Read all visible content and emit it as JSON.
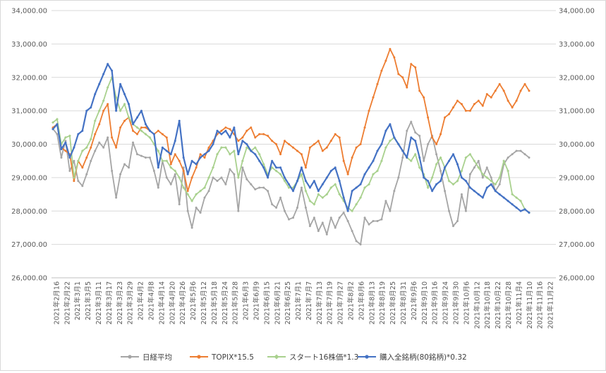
{
  "chart_data": {
    "type": "line",
    "y_axis": {
      "min": 26000,
      "max": 34000,
      "step": 1000,
      "tick_labels": [
        "26,000.00",
        "27,000.00",
        "28,000.00",
        "29,000.00",
        "30,000.00",
        "31,000.00",
        "32,000.00",
        "33,000.00",
        "34,000.00"
      ],
      "right_axis_mirror": true
    },
    "grid": true,
    "legend_position": "bottom",
    "x_tick_labels": [
      "2021年2月16",
      "2021年2月22",
      "2021年3月1",
      "2021年3月5",
      "2021年3月11",
      "2021年3月17",
      "2021年3月23",
      "2021年3月29",
      "2021年4月2",
      "2021年4月8",
      "2021年4月14",
      "2021年4月20",
      "2021年4月26",
      "2021年5月6",
      "2021年5月12",
      "2021年5月18",
      "2021年5月24",
      "2021年5月28",
      "2021年6月3",
      "2021年6月9",
      "2021年6月15",
      "2021年6月21",
      "2021年6月25",
      "2021年7月1",
      "2021年7月7",
      "2021年7月13",
      "2021年7月19",
      "2021年7月27",
      "2021年8月2",
      "2021年8月6",
      "2021年8月13",
      "2021年8月19",
      "2021年8月25",
      "2021年8月31",
      "2021年9月6",
      "2021年9月10",
      "2021年9月16",
      "2021年9月24",
      "2021年9月30",
      "2021年10月6",
      "2021年10月12",
      "2021年10月18",
      "2021年10月22",
      "2021年10月28",
      "2021年11月4",
      "2021年11月10",
      "2021年11月16",
      "2021年11月22"
    ],
    "series": [
      {
        "name": "日経平均",
        "color": "#a5a5a5",
        "marker": "circle",
        "values": [
          30460,
          30300,
          29600,
          30100,
          29200,
          29500,
          28900,
          28750,
          29100,
          29500,
          29800,
          30050,
          29900,
          30200,
          29200,
          28400,
          29100,
          29400,
          29300,
          30050,
          29700,
          29650,
          29600,
          29600,
          29200,
          28700,
          29500,
          29000,
          28800,
          29100,
          28200,
          29300,
          28000,
          27500,
          28100,
          27950,
          28400,
          28600,
          29000,
          28900,
          29000,
          28800,
          29250,
          29100,
          28000,
          29300,
          28950,
          28800,
          28650,
          28700,
          28700,
          28600,
          28200,
          28100,
          28400,
          28000,
          27750,
          27800,
          28100,
          28700,
          28100,
          27550,
          27800,
          27400,
          27650,
          27300,
          27800,
          27500,
          27800,
          27950,
          27700,
          27400,
          27100,
          27000,
          27800,
          27600,
          27700,
          27700,
          27750,
          28300,
          28000,
          28600,
          29000,
          29600,
          30400,
          30670,
          30350,
          30250,
          29500,
          30000,
          30250,
          29700,
          29200,
          28600,
          28000,
          27550,
          27700,
          28500,
          28000,
          29100,
          29300,
          29500,
          29000,
          29300,
          29000,
          28600,
          28800,
          29400,
          29600,
          29700,
          29800,
          29800,
          29700,
          29600
        ]
      },
      {
        "name": "TOPIX*15.5",
        "color": "#ed7d31",
        "marker": "circle",
        "values": [
          30500,
          30600,
          29900,
          29800,
          29700,
          28900,
          29500,
          29300,
          29600,
          29900,
          30300,
          30600,
          31000,
          31200,
          30200,
          29900,
          30500,
          30700,
          30800,
          30400,
          30300,
          30500,
          30500,
          30400,
          30300,
          30400,
          30300,
          30200,
          29400,
          29700,
          29500,
          29200,
          28600,
          29000,
          29300,
          29700,
          29600,
          29900,
          30100,
          30300,
          30400,
          30500,
          30450,
          30300,
          30100,
          30200,
          30400,
          30500,
          30200,
          30300,
          30300,
          30250,
          30100,
          30000,
          29700,
          30100,
          30000,
          29900,
          29800,
          29700,
          29300,
          29900,
          30000,
          30100,
          29800,
          29900,
          30100,
          30300,
          30200,
          29500,
          29100,
          29600,
          29900,
          30000,
          30500,
          31000,
          31400,
          31800,
          32200,
          32500,
          32850,
          32600,
          32100,
          32000,
          31700,
          32400,
          32300,
          31600,
          31400,
          30800,
          30200,
          30000,
          30300,
          30800,
          30900,
          31100,
          31300,
          31200,
          31000,
          31000,
          31200,
          31300,
          31150,
          31500,
          31400,
          31600,
          31800,
          31600,
          31300,
          31100,
          31300,
          31600,
          31800,
          31600
        ]
      },
      {
        "name": "スタート16株価*1.3",
        "color": "#a9d18e",
        "marker": "diamond",
        "values": [
          30650,
          30750,
          30000,
          30200,
          30250,
          29000,
          29500,
          29800,
          29900,
          30150,
          30700,
          31000,
          31300,
          31700,
          32000,
          31400,
          31000,
          31200,
          30800,
          30600,
          30500,
          30400,
          30300,
          30200,
          30000,
          29800,
          29500,
          29500,
          29300,
          29200,
          29000,
          28700,
          28500,
          28300,
          28500,
          28600,
          28700,
          29000,
          29300,
          29700,
          29900,
          29900,
          29700,
          29800,
          29000,
          29500,
          29900,
          29800,
          29900,
          29700,
          29400,
          29100,
          29300,
          29200,
          29100,
          28900,
          28700,
          28700,
          28900,
          29100,
          28600,
          28300,
          28200,
          28500,
          28400,
          28500,
          28700,
          28800,
          28500,
          28300,
          28100,
          28000,
          28200,
          28400,
          28700,
          28800,
          29100,
          29200,
          29500,
          29900,
          30100,
          30200,
          30000,
          29800,
          29600,
          29500,
          29700,
          29300,
          29100,
          28700,
          29000,
          29400,
          29600,
          29300,
          28900,
          28800,
          28900,
          29200,
          29600,
          29700,
          29500,
          29300,
          29100,
          29000,
          28900,
          28800,
          29000,
          29500,
          29200,
          28500,
          28400,
          28300,
          28050,
          27950
        ]
      },
      {
        "name": "購入全銘柄(80銘柄)*0.32",
        "color": "#4472c4",
        "marker": "circle",
        "values": [
          30450,
          30600,
          29850,
          30050,
          29600,
          29900,
          30300,
          30400,
          31000,
          31100,
          31500,
          31800,
          32100,
          32400,
          32200,
          31000,
          31800,
          31500,
          31200,
          30600,
          30800,
          31000,
          30600,
          30400,
          30300,
          29300,
          29900,
          29800,
          29700,
          30100,
          30700,
          29600,
          29100,
          29500,
          29400,
          29600,
          29700,
          29800,
          30000,
          30400,
          30300,
          30400,
          30200,
          30500,
          29700,
          30100,
          30000,
          29800,
          29700,
          29500,
          29300,
          29000,
          29500,
          29300,
          29300,
          29000,
          28800,
          28600,
          28900,
          29300,
          28900,
          28700,
          28900,
          28600,
          28800,
          29000,
          29200,
          29300,
          28900,
          28400,
          28000,
          28600,
          28700,
          28800,
          29100,
          29300,
          29500,
          29800,
          30000,
          30400,
          30600,
          30200,
          30000,
          29800,
          29600,
          30200,
          30100,
          29600,
          29000,
          28900,
          28600,
          28800,
          28900,
          29300,
          29500,
          29700,
          29400,
          29000,
          28900,
          28700,
          28600,
          28500,
          28400,
          28700,
          28800,
          28600,
          28500,
          28400,
          28300,
          28200,
          28100,
          28000,
          28050,
          27950
        ]
      }
    ]
  }
}
